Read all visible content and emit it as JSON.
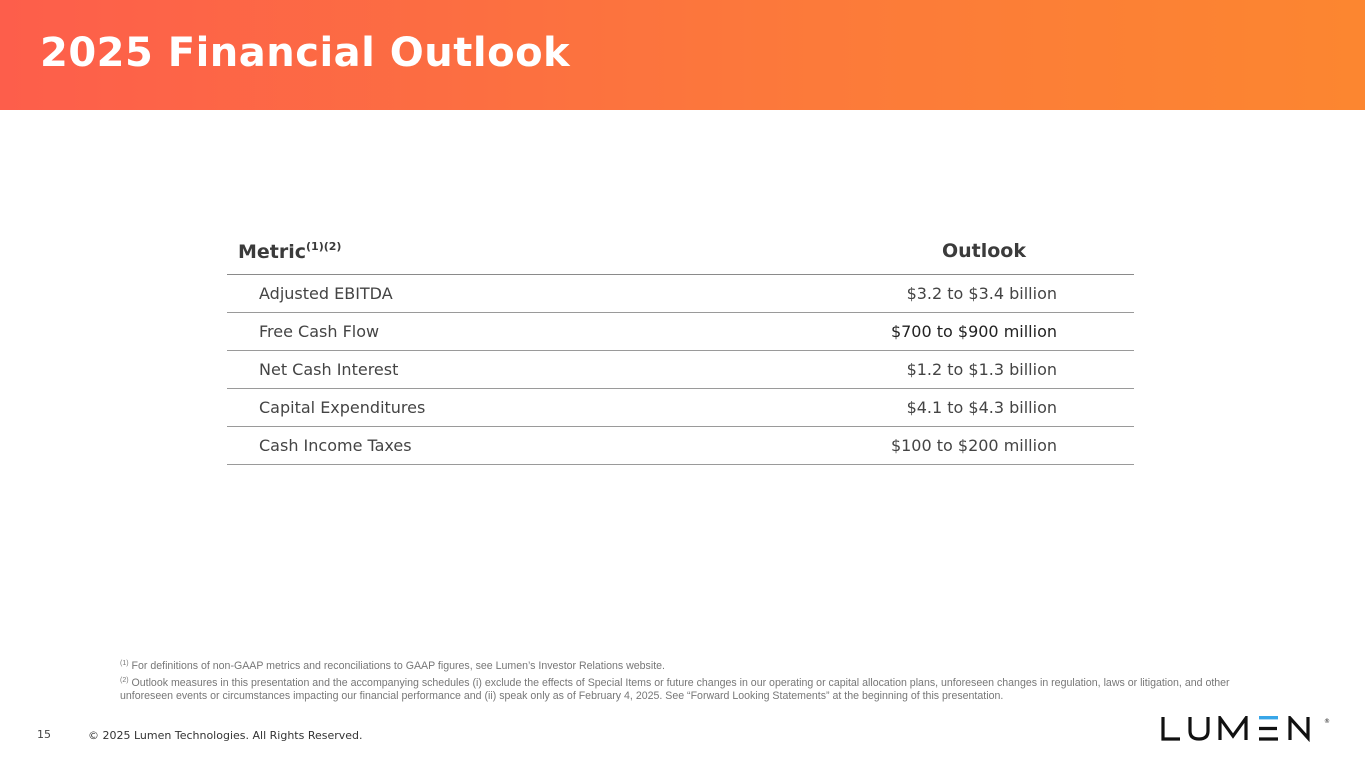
{
  "header": {
    "title": "2025 Financial Outlook",
    "gradient_colors": [
      "#fd5e4b",
      "#fc8630"
    ]
  },
  "table": {
    "columns": {
      "metric": "Metric",
      "metric_sup": "(1)(2)",
      "outlook": "Outlook"
    },
    "rows": [
      {
        "metric": "Adjusted EBITDA",
        "outlook": "$3.2 to $3.4 billion"
      },
      {
        "metric": "Free Cash Flow",
        "outlook": "$700 to $900 million"
      },
      {
        "metric": "Net Cash Interest",
        "outlook": "$1.2 to $1.3 billion"
      },
      {
        "metric": "Capital Expenditures",
        "outlook": "$4.1 to $4.3 billion"
      },
      {
        "metric": "Cash Income Taxes",
        "outlook": "$100 to $200 million"
      }
    ]
  },
  "footnotes": [
    {
      "mark": "(1)",
      "text": " For definitions of non-GAAP metrics and reconciliations to GAAP figures, see Lumen’s Investor Relations website."
    },
    {
      "mark": "(2)",
      "text": " Outlook measures in this presentation and the accompanying schedules (i) exclude the effects of Special Items or future changes in our operating or capital allocation plans, unforeseen changes in regulation, laws or litigation, and other unforeseen events or circumstances impacting our financial performance and (ii) speak only as of February 4, 2025. See “Forward Looking Statements” at the beginning of this presentation."
    }
  ],
  "footer": {
    "page_number": "15",
    "copyright": "© 2025 Lumen Technologies. All Rights Reserved.",
    "logo": "LUMEN"
  }
}
